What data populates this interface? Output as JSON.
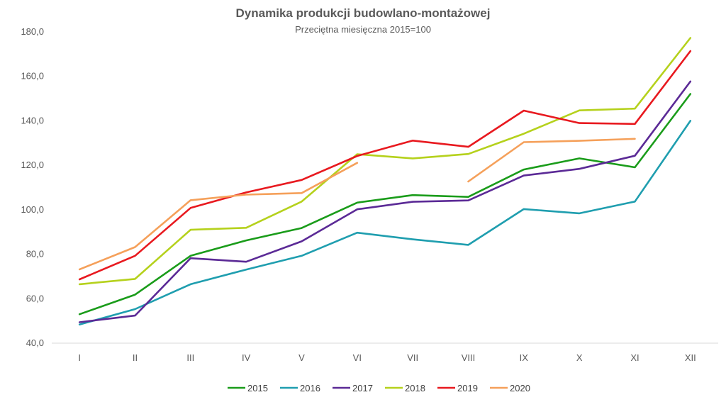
{
  "chart_data": {
    "type": "line",
    "title": "Dynamika produkcji budowlano-montażowej",
    "subtitle": "Przeciętna miesięczna 2015=100",
    "xlabel": "",
    "ylabel": "",
    "categories": [
      "I",
      "II",
      "III",
      "IV",
      "V",
      "VI",
      "VII",
      "VIII",
      "IX",
      "X",
      "XI",
      "XII"
    ],
    "ylim": [
      40,
      180
    ],
    "yticks": [
      "40,0",
      "60,0",
      "80,0",
      "100,0",
      "120,0",
      "140,0",
      "160,0",
      "180,0"
    ],
    "grid": false,
    "legend_position": "bottom",
    "series": [
      {
        "name": "2015",
        "color": "#1a9c1a",
        "values": [
          53.0,
          61.8,
          79.3,
          86.2,
          91.8,
          103.2,
          106.6,
          105.8,
          118.1,
          123.1,
          119.1,
          152.1
        ]
      },
      {
        "name": "2016",
        "color": "#1f9eaf",
        "values": [
          48.4,
          55.3,
          66.5,
          73.1,
          79.3,
          89.7,
          86.7,
          84.2,
          100.3,
          98.4,
          103.7,
          140.0
        ]
      },
      {
        "name": "2017",
        "color": "#5b2a96",
        "values": [
          49.4,
          52.4,
          78.2,
          76.6,
          85.8,
          100.2,
          103.6,
          104.2,
          115.4,
          118.4,
          124.3,
          157.7
        ]
      },
      {
        "name": "2018",
        "color": "#b5d11c",
        "values": [
          66.5,
          68.9,
          91.0,
          91.9,
          103.7,
          125.0,
          123.1,
          125.1,
          134.2,
          144.7,
          145.5,
          177.3
        ]
      },
      {
        "name": "2019",
        "color": "#e8191f",
        "values": [
          68.7,
          79.3,
          100.8,
          107.8,
          113.4,
          124.2,
          131.1,
          128.3,
          144.6,
          139.0,
          138.6,
          171.4
        ]
      },
      {
        "name": "2020",
        "color": "#f5a05a",
        "values": [
          73.2,
          83.2,
          104.3,
          106.8,
          107.5,
          121.1,
          null,
          112.7,
          130.4,
          131.0,
          131.9,
          null
        ]
      }
    ]
  }
}
